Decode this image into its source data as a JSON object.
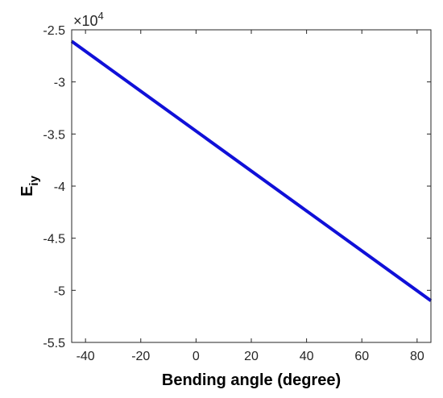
{
  "chart_data": {
    "type": "line",
    "title": "",
    "xlabel": "Bending angle (degree)",
    "ylabel_main": "E",
    "ylabel_sub": "iy",
    "y_multiplier": {
      "base": "×10",
      "exponent": "4"
    },
    "xlim": [
      -45,
      85
    ],
    "ylim": [
      -5.5,
      -2.5
    ],
    "x_ticks": [
      -40,
      -20,
      0,
      20,
      40,
      60,
      80
    ],
    "y_ticks": [
      -2.5,
      -3,
      -3.5,
      -4,
      -4.5,
      -5,
      -5.5
    ],
    "x_tick_labels": [
      "-40",
      "-20",
      "0",
      "20",
      "40",
      "60",
      "80"
    ],
    "y_tick_labels": [
      "-2.5",
      "-3",
      "-3.5",
      "-4",
      "-4.5",
      "-5",
      "-5.5"
    ],
    "grid": false,
    "series": [
      {
        "color": "#1010d8",
        "x": [
          -45,
          85
        ],
        "y": [
          -2.61,
          -5.1
        ]
      }
    ]
  }
}
